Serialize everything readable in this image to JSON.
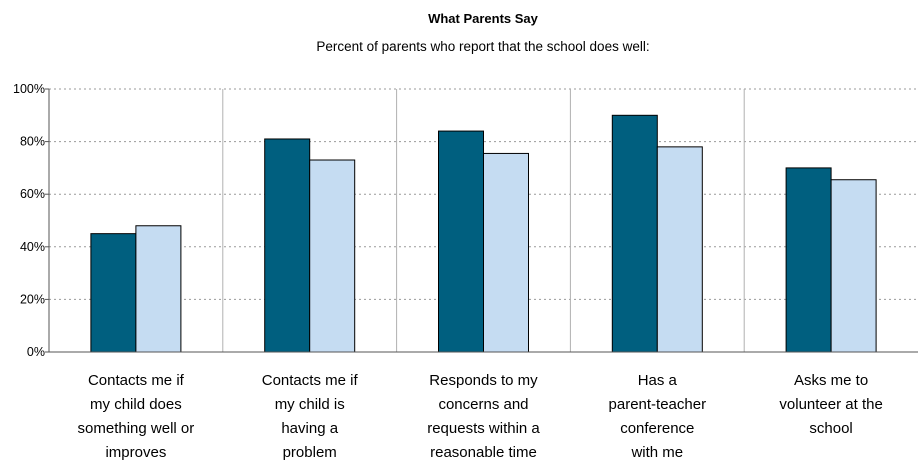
{
  "chart_data": {
    "type": "bar",
    "title": "What Parents Say",
    "subtitle": "Percent of parents who report that the school does well:",
    "xlabel": "",
    "ylabel": "",
    "ylim": [
      0,
      100
    ],
    "yticks": [
      "0%",
      "20%",
      "40%",
      "60%",
      "80%",
      "100%"
    ],
    "grid": true,
    "categories": [
      [
        "Contacts me if",
        "my child does",
        "something well or",
        "improves"
      ],
      [
        "Contacts me if",
        "my child is",
        "having a",
        "problem"
      ],
      [
        "Responds to my",
        "concerns and",
        "requests within a",
        "reasonable time"
      ],
      [
        "Has a",
        "parent-teacher",
        "conference",
        "with me"
      ],
      [
        "Asks me to",
        "volunteer at the",
        "school"
      ]
    ],
    "series": [
      {
        "values": [
          45,
          81,
          84,
          90,
          70
        ]
      },
      {
        "values": [
          48,
          73,
          75.5,
          78,
          65.5
        ]
      }
    ],
    "colors": [
      "#005f7f",
      "#c5dcf2"
    ]
  }
}
